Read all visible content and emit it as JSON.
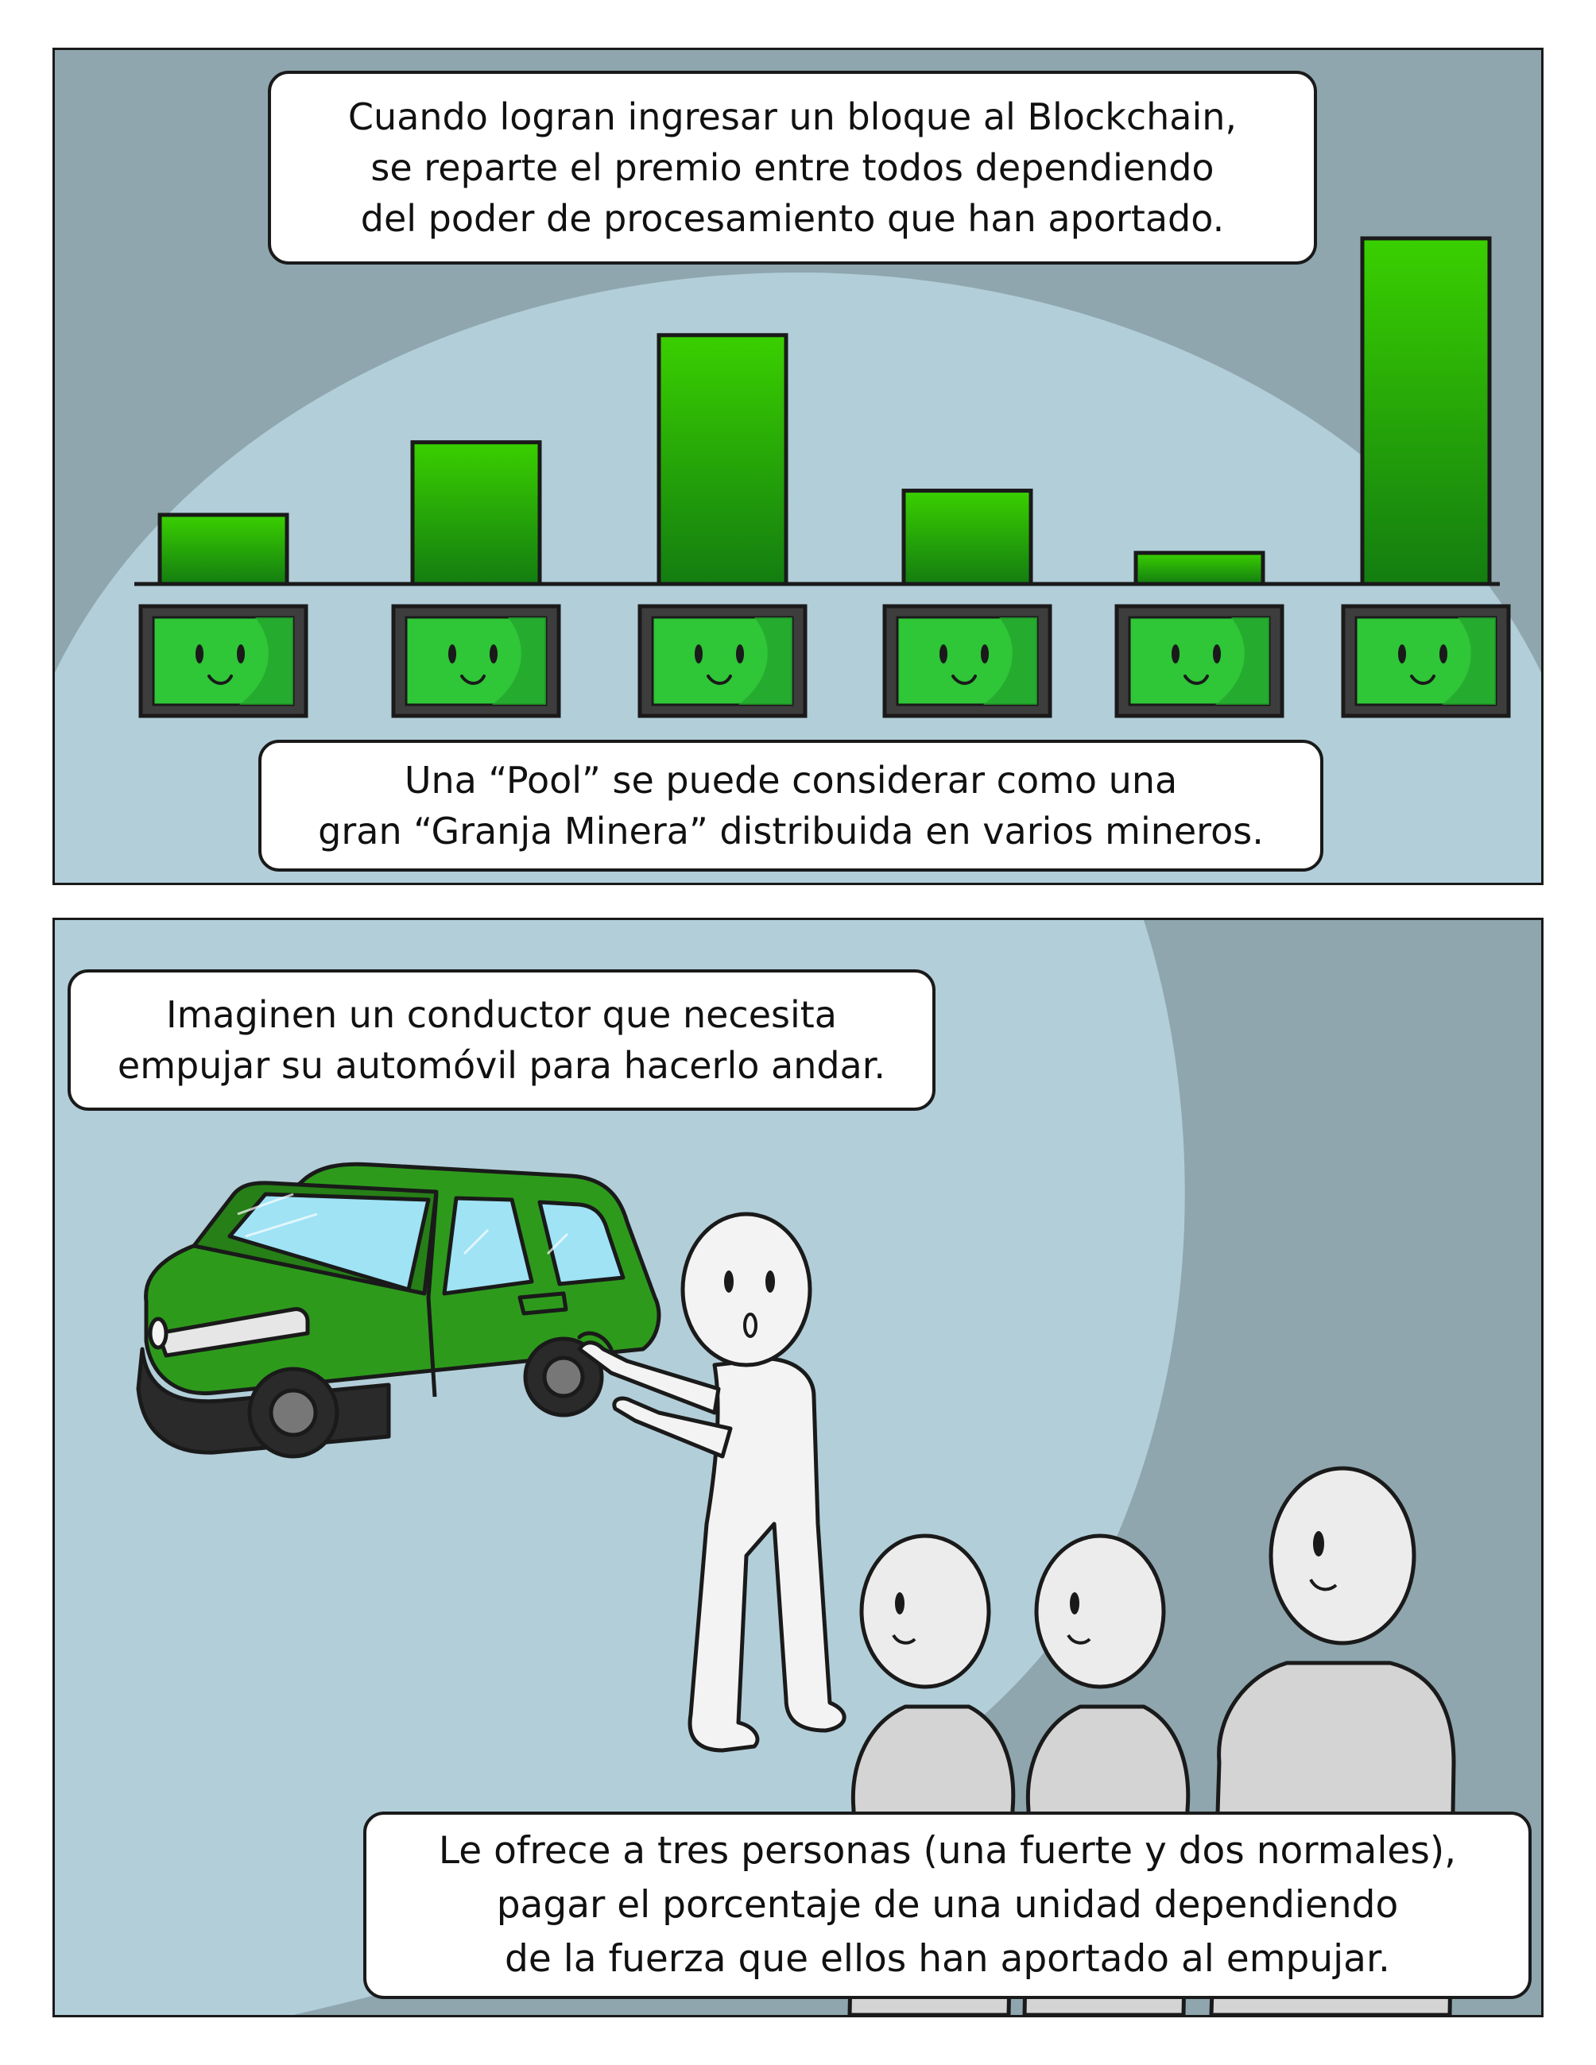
{
  "panel_top": {
    "bubble_top_lines": [
      "Cuando logran ingresar un bloque al Blockchain,",
      "se reparte el premio entre todos dependiendo",
      "del poder de procesamiento que han aportado."
    ],
    "bubble_pool_lines": [
      "Una “Pool” se puede considerar como una",
      "gran “Granja Minera” distribuida en varios mineros."
    ],
    "reward_bar_levels": [
      0.2,
      0.41,
      0.72,
      0.27,
      0.09,
      1.0
    ],
    "miner_count": 6,
    "bar_top_color": "#3ad000",
    "bar_bottom_color": "#137d10",
    "screen_color": "#2fc638"
  },
  "panel_bottom": {
    "bubble_imagine_lines": [
      "Imaginen un conductor que necesita",
      "empujar su automóvil para hacerlo andar."
    ],
    "bubble_offer_lines": [
      "Le ofrece a tres personas (una fuerte y dos normales),",
      "pagar el porcentaje de una unidad dependiendo",
      "de la fuerza que ellos han aportado al empujar."
    ],
    "car_color": "#2e9a1c"
  },
  "colors": {
    "background_dark": "#8fa6ae",
    "spotlight": "#b2ced9",
    "outline": "#1a1a1a"
  }
}
